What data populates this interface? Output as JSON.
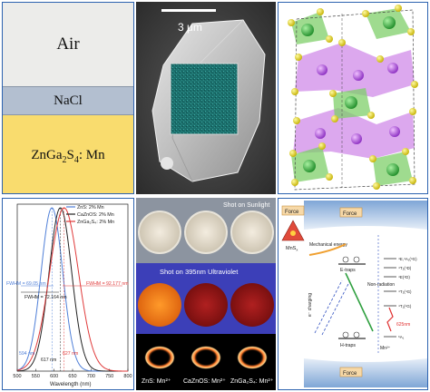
{
  "layers": {
    "air": "Air",
    "nacl": "NaCl",
    "phosphor_main": "ZnGa",
    "phosphor_sub1": "2",
    "phosphor_mid": "S",
    "phosphor_sub2": "4",
    "phosphor_tail": ": Mn"
  },
  "sem": {
    "scale_label": "3 μm"
  },
  "spectrum": {
    "legend": [
      "ZnS: 2% Mn",
      "CaZnOS: 2% Mn",
      "ZnGa₂S₄: 2% Mn"
    ],
    "fwhm_left": "FWHM = 69.05 nm",
    "fwhm_mid": "FWHM = 72.164 nm",
    "fwhm_right": "FWHM = 92.177 nm",
    "peak_1": "594 nm",
    "peak_2": "617 nm",
    "peak_3": "627 nm",
    "xlabel": "Wavelength (nm)",
    "x_ticks": [
      "500",
      "550",
      "600",
      "650",
      "700",
      "750",
      "800"
    ],
    "colors": [
      "#4f7fd8",
      "#222222",
      "#e03a3a"
    ]
  },
  "chart_data": {
    "type": "line",
    "xlabel": "Wavelength (nm)",
    "ylabel": "",
    "xlim": [
      500,
      800
    ],
    "x_ticks": [
      500,
      550,
      600,
      650,
      700,
      750,
      800
    ],
    "series": [
      {
        "name": "ZnS: 2% Mn",
        "peak": 594,
        "fwhm": 69.05,
        "color": "#4f7fd8"
      },
      {
        "name": "CaZnOS: 2% Mn",
        "peak": 617,
        "fwhm": 72.164,
        "color": "#222222"
      },
      {
        "name": "ZnGa₂S₄: 2% Mn",
        "peak": 627,
        "fwhm": 92.177,
        "color": "#e03a3a"
      }
    ]
  },
  "photos": {
    "sunlight_label": "Shot on Sunlight",
    "uv_label": "Shot on 395nm Ultraviolet",
    "sample_1": "ZnS: Mn²⁺",
    "sample_2": "CaZnOS: Mn²⁺",
    "sample_3": "ZnGa₂S₄: Mn²⁺"
  },
  "mechanism": {
    "force_top": "Force",
    "force_left": "Force",
    "force_bottom": "Force",
    "mnsx_label": "MnS",
    "mnsx_sub": "x",
    "mechanical_energy": "Mechanical energy",
    "e_traps": "E-traps",
    "h_traps": "H-traps",
    "non_radiation": "Non-radiation",
    "e_charging": "e⁻ charging",
    "mn_label": "Mn²⁺",
    "emission_label": "625nm",
    "levels": [
      "⁴E,⁴A₁(⁴G)",
      "⁴T₂(⁴D)",
      "⁴E(⁴D)",
      "⁴T₂(⁴G)",
      "⁴T₁(⁴G)",
      "⁶A₁"
    ]
  }
}
